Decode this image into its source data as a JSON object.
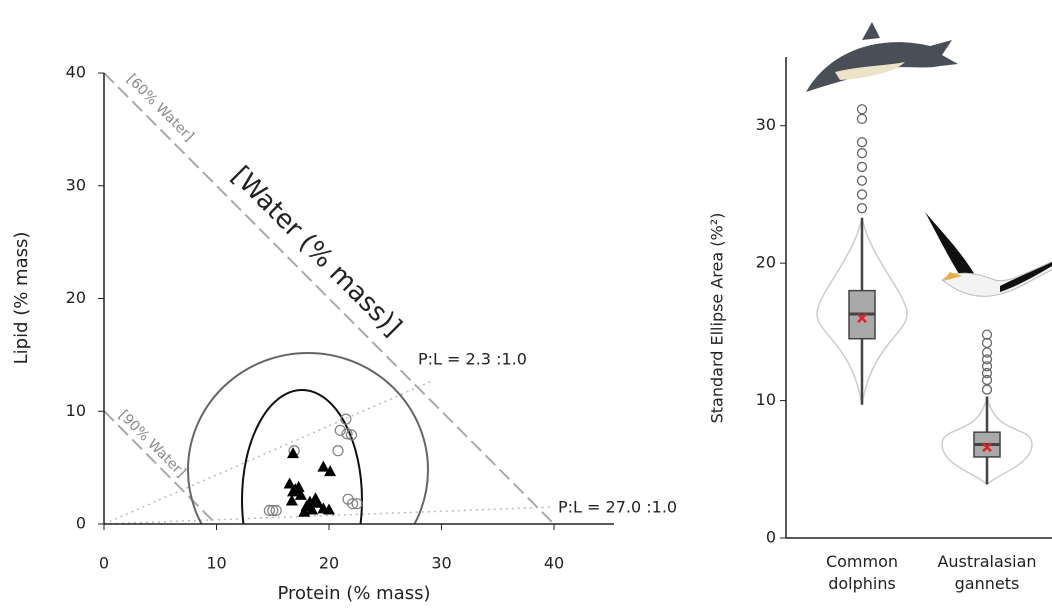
{
  "chart_data": [
    {
      "type": "scatter",
      "xlabel": "Protein (% mass)",
      "ylabel": "Lipid (% mass)",
      "xlim": [
        0,
        45
      ],
      "ylim": [
        0,
        40
      ],
      "xticks": [
        0,
        10,
        20,
        30,
        40
      ],
      "yticks": [
        0,
        10,
        20,
        30,
        40
      ],
      "annotations": [
        "[60% Water]",
        "[90% Water]",
        "[Water (% mass)]",
        "P:L = 2.3 :1.0",
        "P:L = 27.0 :1.0"
      ],
      "series": [
        {
          "marker": "circle",
          "color": "#808080",
          "x": [
            21.5,
            21.0,
            21.6,
            22.0,
            20.8,
            21.7,
            22.1,
            22.5,
            14.7,
            15.0,
            15.3,
            16.9
          ],
          "y": [
            9.3,
            8.3,
            8.0,
            7.9,
            6.5,
            2.2,
            1.8,
            1.8,
            1.2,
            1.2,
            1.2,
            6.5
          ]
        },
        {
          "marker": "triangle",
          "color": "#000000",
          "x": [
            16.8,
            19.5,
            20.1,
            16.5,
            17.0,
            16.8,
            17.3,
            18.0,
            18.5,
            19.0,
            19.5,
            17.8,
            20.0,
            18.8,
            16.7,
            17.5,
            18.3
          ],
          "y": [
            6.2,
            5.0,
            4.6,
            3.5,
            3.0,
            2.8,
            3.2,
            1.5,
            1.2,
            1.8,
            1.3,
            1.0,
            1.2,
            2.2,
            2.0,
            2.5,
            1.9
          ]
        }
      ]
    },
    {
      "type": "box",
      "ylabel": "Standard Ellipse Area (%²)",
      "categories": [
        "Common dolphins",
        "Australasian gannets"
      ],
      "ylim": [
        0,
        35
      ],
      "yticks": [
        0,
        10,
        20,
        30
      ],
      "box_color": "#a9a9a9",
      "mean_color": "#e0202a",
      "boxes": [
        {
          "min": 9.7,
          "q1": 14.5,
          "median": 16.3,
          "q3": 18.0,
          "max": 23.3,
          "mean": 16.0,
          "outliers": [
            24.0,
            25.0,
            26.0,
            27.0,
            28.0,
            28.8,
            30.5,
            31.2
          ]
        },
        {
          "min": 3.9,
          "q1": 5.9,
          "median": 6.8,
          "q3": 7.7,
          "max": 10.3,
          "mean": 6.6,
          "outliers": [
            10.8,
            11.5,
            12.0,
            12.5,
            13.0,
            13.5,
            14.2,
            14.8
          ]
        }
      ]
    }
  ]
}
